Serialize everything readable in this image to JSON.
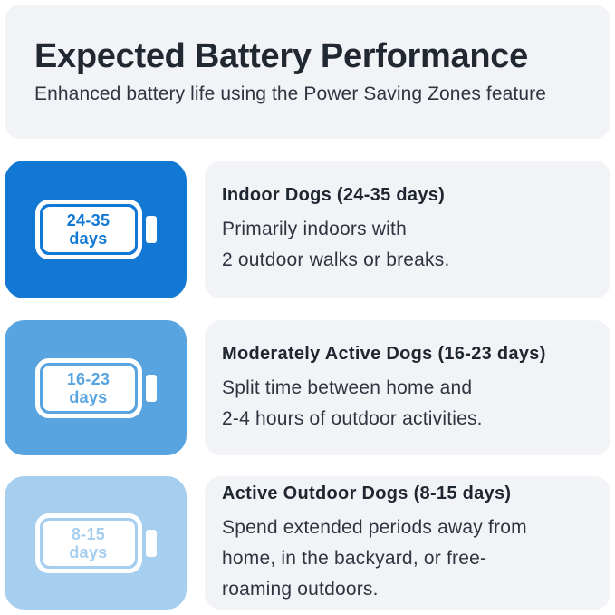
{
  "header": {
    "title": "Expected Battery Performance",
    "subtitle": "Enhanced battery life using the Power Saving Zones feature"
  },
  "rows": [
    {
      "tier": "indoor",
      "color": "#1278d3",
      "badge": {
        "range": "24-35",
        "unit": "days"
      },
      "heading": "Indoor Dogs (24-35 days)",
      "description_lines": [
        "Primarily indoors with",
        "2 outdoor walks or breaks."
      ]
    },
    {
      "tier": "moderately-active",
      "color": "#58a4e1",
      "badge": {
        "range": "16-23",
        "unit": "days"
      },
      "heading": "Moderately Active Dogs (16-23 days)",
      "description_lines": [
        "Split time between home and",
        "2-4 hours of outdoor activities."
      ]
    },
    {
      "tier": "active-outdoor",
      "color": "#a6ceef",
      "badge": {
        "range": "8-15",
        "unit": "days"
      },
      "heading": "Active Outdoor Dogs (8-15 days)",
      "description_lines": [
        "Spend extended periods away from",
        "home, in the backyard, or free-",
        "roaming outdoors."
      ]
    }
  ],
  "colors": {
    "page_background": "#ffffff",
    "panel_background": "#f2f3f6",
    "title_text": "#212832",
    "subtitle_text": "#2f3540",
    "heading_text": "#1f2630",
    "body_text": "#2f3540",
    "battery_outline": "#ffffff"
  }
}
